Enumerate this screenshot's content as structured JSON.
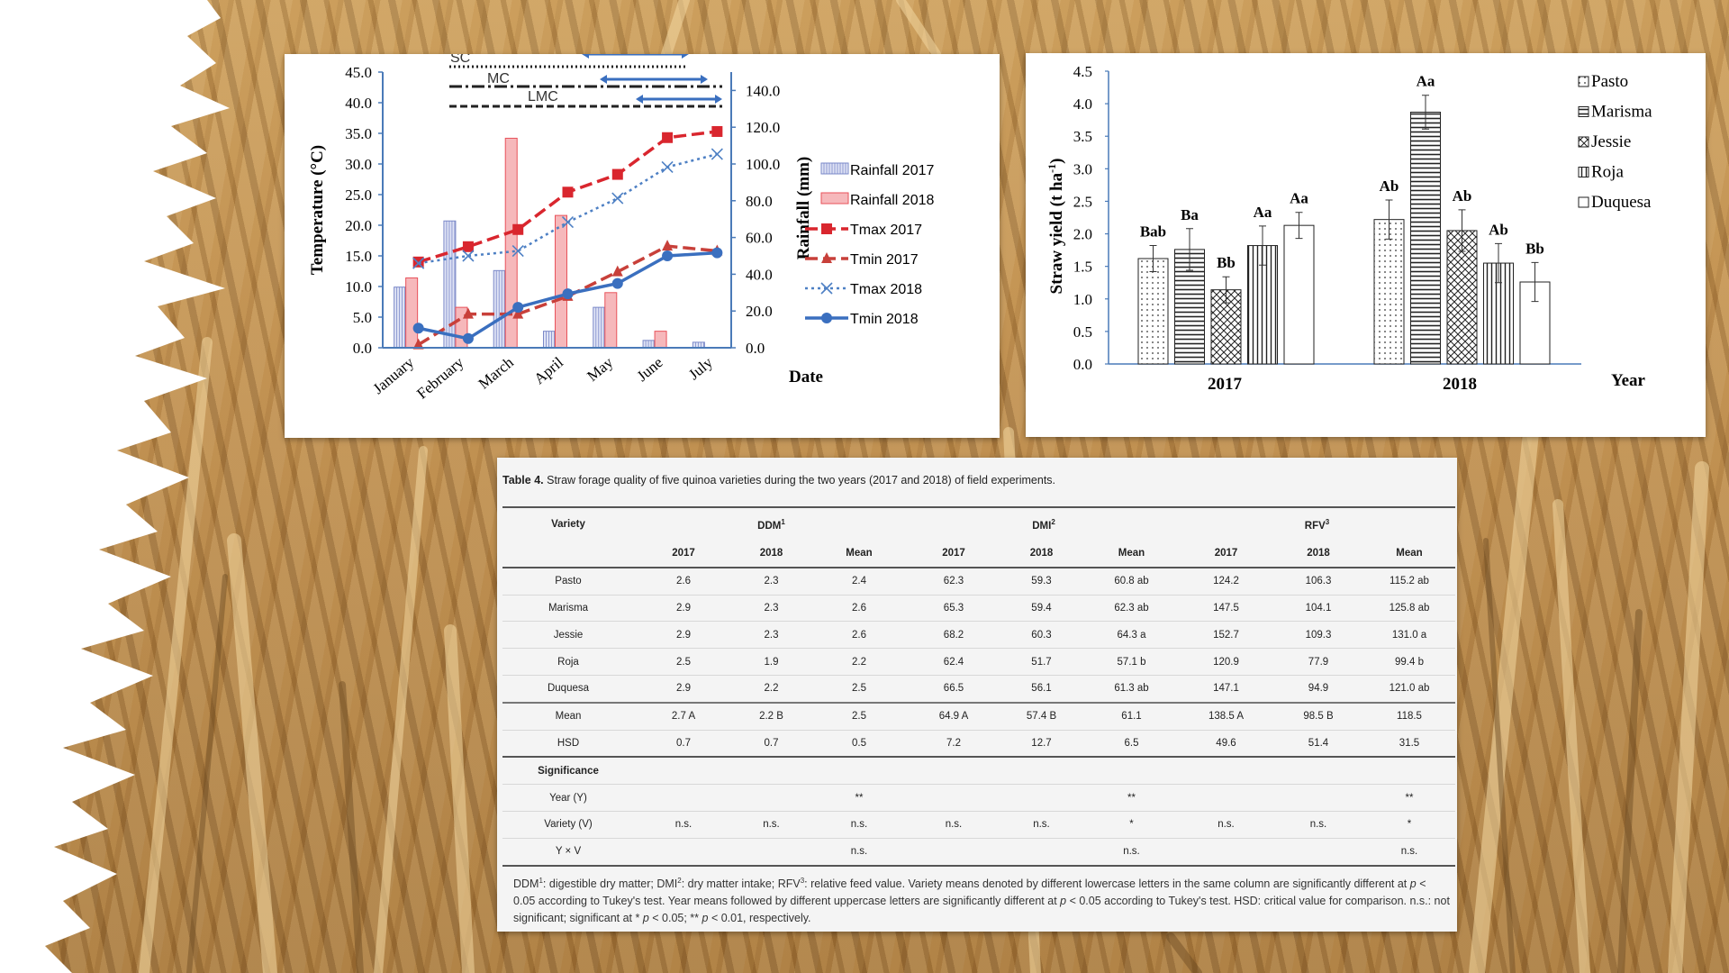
{
  "left_chart": {
    "y_left_label": "Temperature (°C)",
    "y_right_label": "Rainfall (mm)",
    "x_label": "Date",
    "months": [
      "January",
      "February",
      "March",
      "April",
      "May",
      "June",
      "July"
    ],
    "y_left_ticks": [
      "0.0",
      "5.0",
      "10.0",
      "15.0",
      "20.0",
      "25.0",
      "30.0",
      "35.0",
      "40.0",
      "45.0"
    ],
    "y_right_ticks": [
      "0.0",
      "20.0",
      "40.0",
      "60.0",
      "80.0",
      "100.0",
      "120.0",
      "140.0"
    ],
    "period_labels": [
      "SC",
      "MC",
      "LMC"
    ],
    "legend": [
      "Rainfall 2017",
      "Rainfall 2018",
      "Tmax 2017",
      "Tmin 2017",
      "Tmax 2018",
      "Tmin 2018"
    ]
  },
  "right_chart": {
    "y_label": "Straw yield (t ha",
    "y_label_sup": "-1",
    "y_label_end": ")",
    "x_label": "Year",
    "groups": [
      "2017",
      "2018"
    ],
    "y_ticks": [
      "0.0",
      "0.5",
      "1.0",
      "1.5",
      "2.0",
      "2.5",
      "3.0",
      "3.5",
      "4.0",
      "4.5"
    ],
    "legend": [
      "Pasto",
      "Marisma",
      "Jessie",
      "Roja",
      "Duquesa"
    ]
  },
  "chart_data": [
    {
      "type": "bar+line",
      "categories": [
        "January",
        "February",
        "March",
        "April",
        "May",
        "June",
        "July"
      ],
      "ylabel": "Temperature (°C)",
      "y2label": "Rainfall (mm)",
      "xlabel": "Date",
      "ylim": [
        0,
        45
      ],
      "y2lim": [
        0,
        150
      ],
      "series": [
        {
          "name": "Rainfall 2017",
          "axis": "right",
          "type": "bar",
          "values": [
            33,
            69,
            42,
            9,
            22,
            4,
            3
          ]
        },
        {
          "name": "Rainfall 2018",
          "axis": "right",
          "type": "bar",
          "values": [
            38,
            22,
            114,
            72,
            30,
            9,
            0
          ]
        },
        {
          "name": "Tmax 2017",
          "axis": "left",
          "type": "line",
          "values": [
            14.0,
            16.5,
            19.3,
            25.4,
            28.3,
            34.3,
            35.3
          ]
        },
        {
          "name": "Tmin 2017",
          "axis": "left",
          "type": "line",
          "values": [
            0.5,
            5.5,
            5.5,
            8.4,
            12.4,
            16.6,
            15.8
          ]
        },
        {
          "name": "Tmax 2018",
          "axis": "left",
          "type": "line",
          "values": [
            13.8,
            15.0,
            15.8,
            20.5,
            24.4,
            29.5,
            31.6
          ]
        },
        {
          "name": "Tmin 2018",
          "axis": "left",
          "type": "line",
          "values": [
            3.2,
            1.5,
            6.6,
            8.8,
            10.5,
            15.0,
            15.5
          ]
        }
      ]
    },
    {
      "type": "bar",
      "categories": [
        "2017",
        "2018"
      ],
      "ylabel": "Straw yield (t ha-1)",
      "xlabel": "Year",
      "ylim": [
        0,
        4.5
      ],
      "series": [
        {
          "name": "Pasto",
          "values": [
            1.62,
            2.22
          ],
          "errors": [
            0.2,
            0.3
          ],
          "labels": [
            "Bab",
            "Ab"
          ]
        },
        {
          "name": "Marisma",
          "values": [
            1.76,
            3.87
          ],
          "errors": [
            0.32,
            0.26
          ],
          "labels": [
            "Ba",
            "Aa"
          ]
        },
        {
          "name": "Jessie",
          "values": [
            1.14,
            2.05
          ],
          "errors": [
            0.2,
            0.32
          ],
          "labels": [
            "Bb",
            "Ab"
          ]
        },
        {
          "name": "Roja",
          "values": [
            1.82,
            1.55
          ],
          "errors": [
            0.3,
            0.3
          ],
          "labels": [
            "Aa",
            "Ab"
          ]
        },
        {
          "name": "Duquesa",
          "values": [
            2.13,
            1.26
          ],
          "errors": [
            0.2,
            0.3
          ],
          "labels": [
            "Aa",
            "Bb"
          ]
        }
      ]
    }
  ],
  "table": {
    "caption_label": "Table 4.",
    "caption_text": "Straw forage quality of five quinoa varieties during the two years (2017 and 2018) of field experiments.",
    "h_variety": "Variety",
    "h_ddm": "DDM",
    "h_dmi": "DMI",
    "h_rfv": "RFV",
    "sup1": "1",
    "sup2": "2",
    "sup3": "3",
    "sub": [
      "2017",
      "2018",
      "Mean",
      "2017",
      "2018",
      "Mean",
      "2017",
      "2018",
      "Mean"
    ],
    "rows": [
      [
        "Pasto",
        "2.6",
        "2.3",
        "2.4",
        "62.3",
        "59.3",
        "60.8 ab",
        "124.2",
        "106.3",
        "115.2 ab"
      ],
      [
        "Marisma",
        "2.9",
        "2.3",
        "2.6",
        "65.3",
        "59.4",
        "62.3 ab",
        "147.5",
        "104.1",
        "125.8 ab"
      ],
      [
        "Jessie",
        "2.9",
        "2.3",
        "2.6",
        "68.2",
        "60.3",
        "64.3 a",
        "152.7",
        "109.3",
        "131.0 a"
      ],
      [
        "Roja",
        "2.5",
        "1.9",
        "2.2",
        "62.4",
        "51.7",
        "57.1 b",
        "120.9",
        "77.9",
        "99.4 b"
      ],
      [
        "Duquesa",
        "2.9",
        "2.2",
        "2.5",
        "66.5",
        "56.1",
        "61.3 ab",
        "147.1",
        "94.9",
        "121.0 ab"
      ]
    ],
    "mean_row": [
      "Mean",
      "2.7 A",
      "2.2 B",
      "2.5",
      "64.9 A",
      "57.4 B",
      "61.1",
      "138.5 A",
      "98.5 B",
      "118.5"
    ],
    "hsd_row": [
      "HSD",
      "0.7",
      "0.7",
      "0.5",
      "7.2",
      "12.7",
      "6.5",
      "49.6",
      "51.4",
      "31.5"
    ],
    "significance_label": "Significance",
    "sig_rows": [
      [
        "Year (Y)",
        "",
        "",
        "**",
        "",
        "",
        "**",
        "",
        "",
        "**"
      ],
      [
        "Variety (V)",
        "n.s.",
        "n.s.",
        "n.s.",
        "n.s.",
        "n.s.",
        "*",
        "n.s.",
        "n.s.",
        "*"
      ],
      [
        "Y × V",
        "",
        "",
        "n.s.",
        "",
        "",
        "n.s.",
        "",
        "",
        "n.s."
      ]
    ],
    "footnote": {
      "a": "DDM",
      "b": ": digestible dry matter; DMI",
      "c": ": dry matter intake; RFV",
      "d": ": relative feed value. Variety means denoted by different lowercase letters in the same column are significantly different at ",
      "p": "p",
      "e": " < 0.05 according to Tukey's test. Year means followed by different uppercase letters are significantly different at ",
      "f": " < 0.05 according to Tukey's test. HSD: critical value for comparison. n.s.: not significant; significant at * ",
      "g": " < 0.05; ** ",
      "h": " < 0.01, respectively."
    }
  },
  "colors": {
    "rain2017": "#7a88c8",
    "rain2018": "#e8525a",
    "tmax2017": "#d9262e",
    "tmin2017": "#c8403a",
    "tmax2018": "#4e80c4",
    "tmin2018": "#3a6fbf",
    "axis": "#4a7ab8"
  }
}
